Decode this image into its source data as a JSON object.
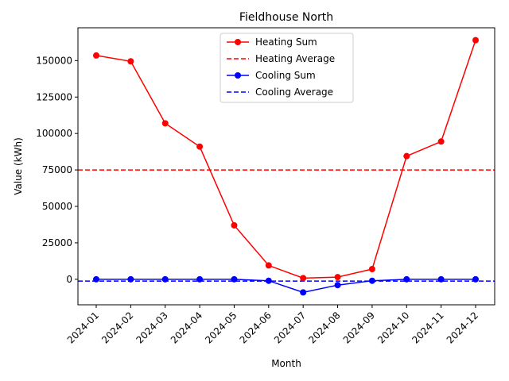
{
  "chart_data": {
    "type": "line",
    "title": "Fieldhouse North",
    "xlabel": "Month",
    "ylabel": "Value (kWh)",
    "categories": [
      "2024-01",
      "2024-02",
      "2024-03",
      "2024-04",
      "2024-05",
      "2024-06",
      "2024-07",
      "2024-08",
      "2024-09",
      "2024-10",
      "2024-11",
      "2024-12"
    ],
    "ylim": [
      -17500,
      172500
    ],
    "yticks": [
      0,
      25000,
      50000,
      75000,
      100000,
      125000,
      150000
    ],
    "grid": false,
    "legend_position": "top-center",
    "series": [
      {
        "name": "Heating Sum",
        "style": "solid",
        "marker": "circle",
        "color": "#ff0000",
        "values": [
          153500,
          149500,
          107000,
          91000,
          37000,
          9500,
          800,
          1500,
          7000,
          84500,
          94500,
          164000
        ]
      },
      {
        "name": "Cooling Sum",
        "style": "solid",
        "marker": "circle",
        "color": "#0000ff",
        "values": [
          0,
          0,
          0,
          0,
          0,
          -1000,
          -9000,
          -4000,
          -1000,
          0,
          0,
          0
        ]
      }
    ],
    "reference_lines": [
      {
        "name": "Heating Average",
        "value": 75000,
        "style": "dashed",
        "color": "#ff0000"
      },
      {
        "name": "Cooling Average",
        "value": -1250,
        "style": "dashed",
        "color": "#0000ff"
      }
    ],
    "legend": [
      {
        "label": "Heating Sum",
        "kind": "line-marker",
        "color": "#ff0000"
      },
      {
        "label": "Heating Average",
        "kind": "dashed",
        "color": "#ff0000"
      },
      {
        "label": "Cooling Sum",
        "kind": "line-marker",
        "color": "#0000ff"
      },
      {
        "label": "Cooling Average",
        "kind": "dashed",
        "color": "#0000ff"
      }
    ]
  }
}
